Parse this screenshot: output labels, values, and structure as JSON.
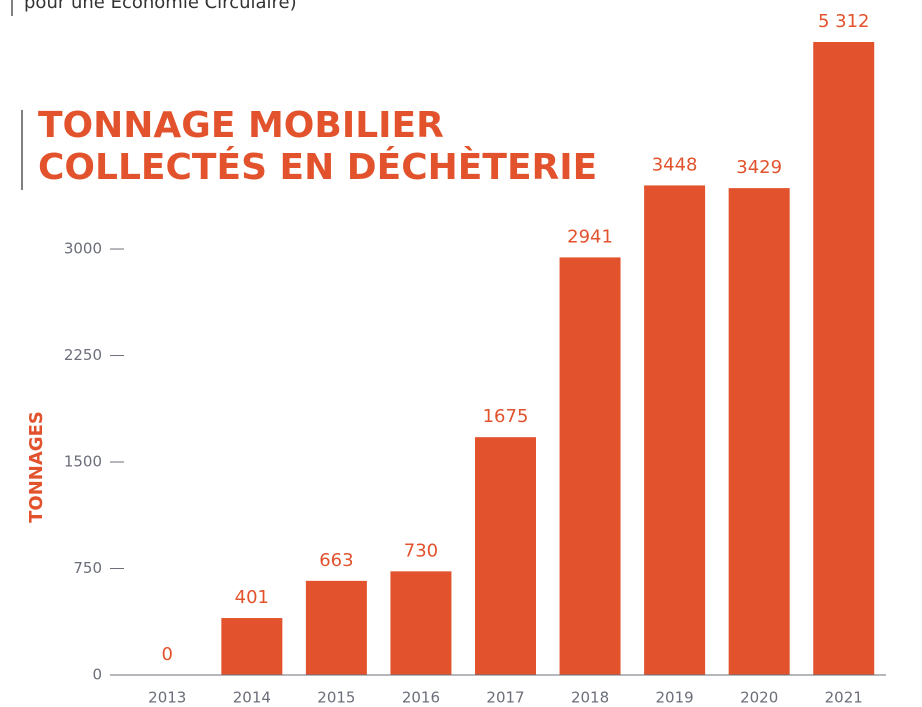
{
  "chart_data": {
    "type": "bar",
    "header_note": "pour une Économie Circulaire)",
    "title_lines": [
      "TONNAGE MOBILIER",
      "COLLECTÉS EN DÉCHÈTERIE"
    ],
    "y_label": "TONNAGES",
    "categories": [
      "2013",
      "2014",
      "2015",
      "2016",
      "2017",
      "2018",
      "2019",
      "2020",
      "2021"
    ],
    "values": [
      0,
      401,
      663,
      730,
      1675,
      2941,
      3448,
      3429,
      5312
    ],
    "value_labels": [
      "0",
      "401",
      "663",
      "730",
      "1675",
      "2941",
      "3448",
      "3429",
      "5 312"
    ],
    "color": "#e2532d",
    "ylim": [
      0,
      4458
    ],
    "yticks": [
      0,
      750,
      1500,
      2250,
      3000
    ],
    "grid": false
  }
}
